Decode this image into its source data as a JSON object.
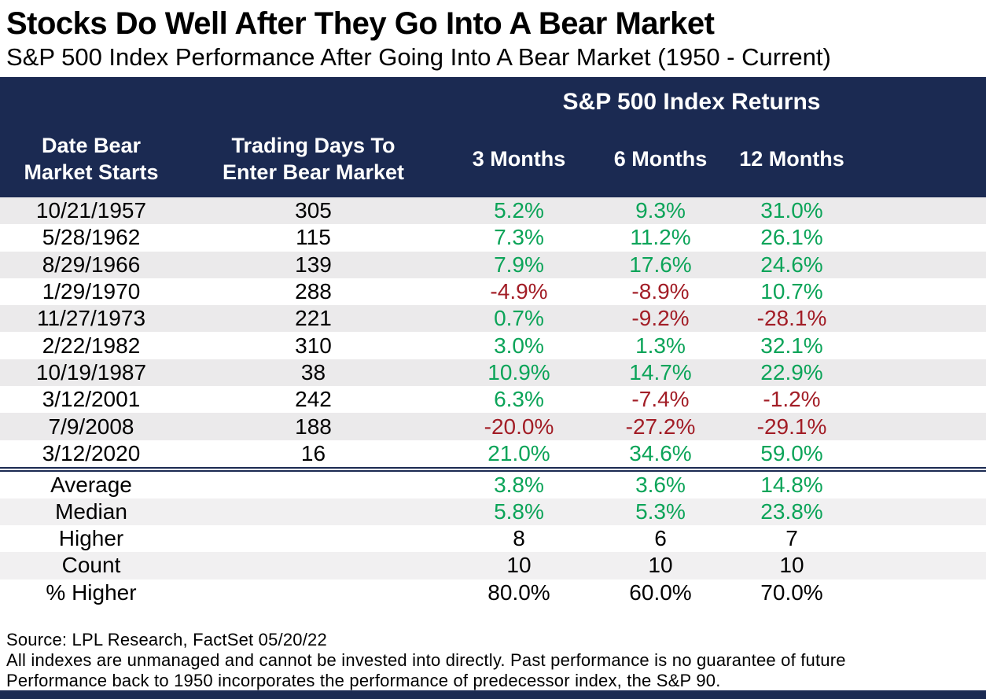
{
  "header": {
    "title": "Stocks Do Well After They Go Into A Bear Market",
    "subtitle": "S&P 500 Index Performance After Going Into A Bear Market (1950 - Current)"
  },
  "table": {
    "group_header": "S&P 500 Index Returns",
    "columns": {
      "date": {
        "line1": "Date Bear",
        "line2": "Market Starts"
      },
      "days": {
        "line1": "Trading Days To",
        "line2": "Enter Bear Market"
      },
      "m3": "3 Months",
      "m6": "6 Months",
      "m12": "12 Months"
    }
  },
  "chart_data": {
    "type": "table",
    "title": "Stocks Do Well After They Go Into A Bear Market",
    "subtitle": "S&P 500 Index Performance After Going Into A Bear Market (1950 - Current)",
    "group_header": "S&P 500 Index Returns",
    "columns": [
      "Date Bear Market Starts",
      "Trading Days To Enter Bear Market",
      "3 Months",
      "6 Months",
      "12 Months"
    ],
    "rows": [
      {
        "date": "10/21/1957",
        "days": "305",
        "m3": "5.2%",
        "m6": "9.3%",
        "m12": "31.0%"
      },
      {
        "date": "5/28/1962",
        "days": "115",
        "m3": "7.3%",
        "m6": "11.2%",
        "m12": "26.1%"
      },
      {
        "date": "8/29/1966",
        "days": "139",
        "m3": "7.9%",
        "m6": "17.6%",
        "m12": "24.6%"
      },
      {
        "date": "1/29/1970",
        "days": "288",
        "m3": "-4.9%",
        "m6": "-8.9%",
        "m12": "10.7%"
      },
      {
        "date": "11/27/1973",
        "days": "221",
        "m3": "0.7%",
        "m6": "-9.2%",
        "m12": "-28.1%"
      },
      {
        "date": "2/22/1982",
        "days": "310",
        "m3": "3.0%",
        "m6": "1.3%",
        "m12": "32.1%"
      },
      {
        "date": "10/19/1987",
        "days": "38",
        "m3": "10.9%",
        "m6": "14.7%",
        "m12": "22.9%"
      },
      {
        "date": "3/12/2001",
        "days": "242",
        "m3": "6.3%",
        "m6": "-7.4%",
        "m12": "-1.2%"
      },
      {
        "date": "7/9/2008",
        "days": "188",
        "m3": "-20.0%",
        "m6": "-27.2%",
        "m12": "-29.1%"
      },
      {
        "date": "3/12/2020",
        "days": "16",
        "m3": "21.0%",
        "m6": "34.6%",
        "m12": "59.0%"
      }
    ],
    "summary_rows": [
      {
        "label": "Average",
        "m3": "3.8%",
        "m6": "3.6%",
        "m12": "14.8%",
        "colored": true
      },
      {
        "label": "Median",
        "m3": "5.8%",
        "m6": "5.3%",
        "m12": "23.8%",
        "colored": true
      },
      {
        "label": "Higher",
        "m3": "8",
        "m6": "6",
        "m12": "7",
        "colored": false
      },
      {
        "label": "Count",
        "m3": "10",
        "m6": "10",
        "m12": "10",
        "colored": false
      },
      {
        "label": "% Higher",
        "m3": "80.0%",
        "m6": "60.0%",
        "m12": "70.0%",
        "colored": false
      }
    ]
  },
  "colors": {
    "navy": "#1b2a52",
    "positive": "#0ca459",
    "negative": "#a21d26"
  },
  "footer": {
    "source": "Source: LPL Research, FactSet 05/20/22",
    "disclaimer1": "All indexes are unmanaged and cannot be invested into directly. Past performance is no guarantee of future",
    "disclaimer2": "Performance back to 1950 incorporates the performance of predecessor index, the S&P 90."
  }
}
